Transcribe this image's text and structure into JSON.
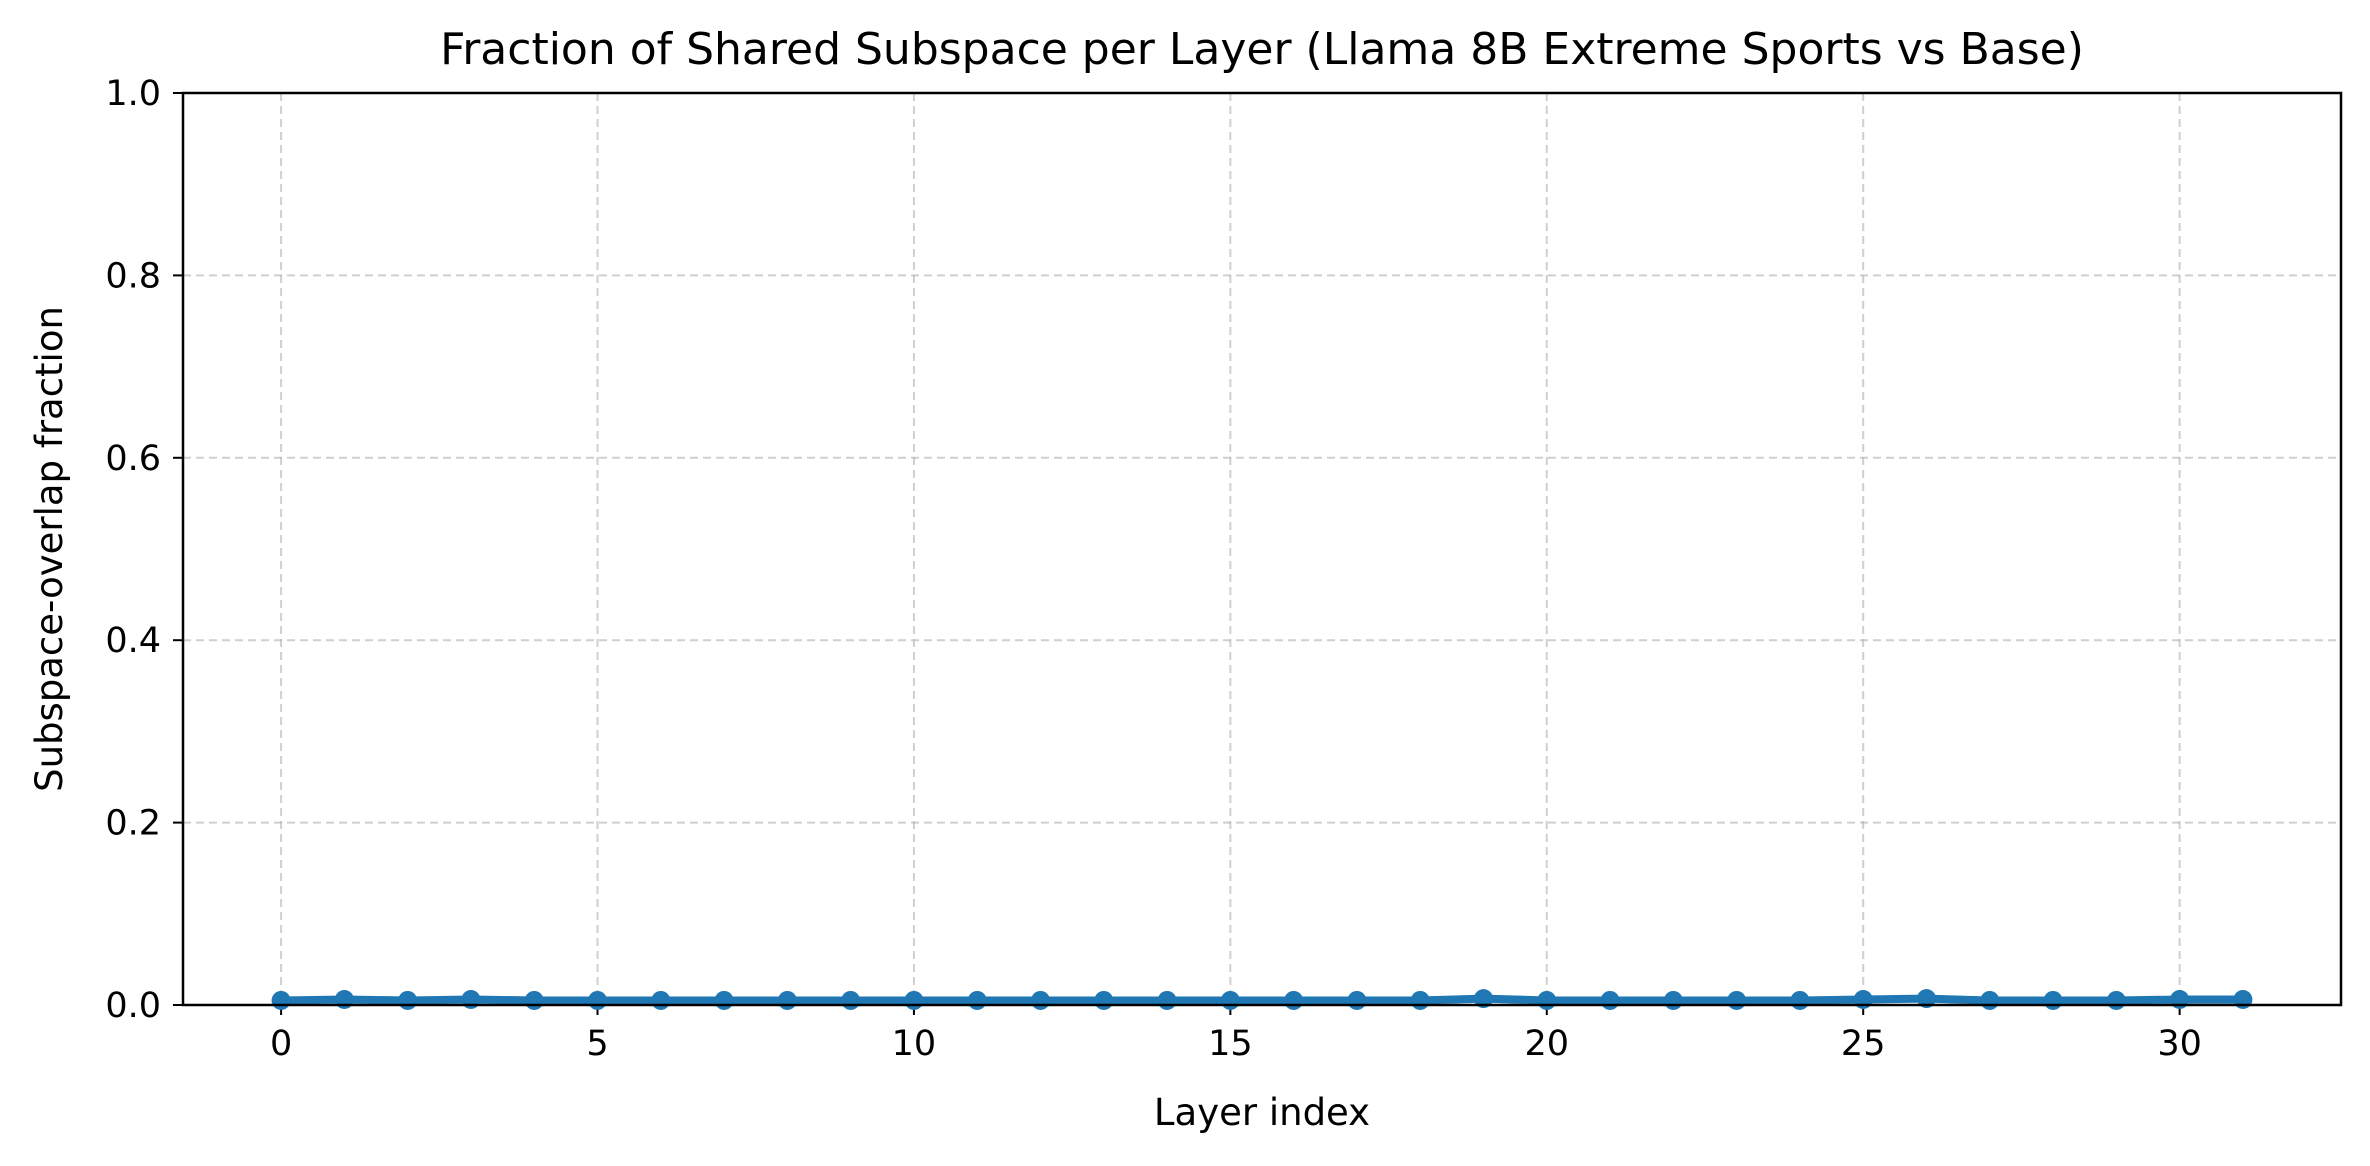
{
  "chart_data": {
    "type": "line",
    "title": "Fraction of Shared Subspace per Layer (Llama 8B Extreme Sports vs Base)",
    "xlabel": "Layer index",
    "ylabel": "Subspace-overlap fraction",
    "xlim": [
      -1.55,
      32.55
    ],
    "ylim": [
      0,
      1.0
    ],
    "xticks": [
      0,
      5,
      10,
      15,
      20,
      25,
      30
    ],
    "xtick_labels": [
      "0",
      "5",
      "10",
      "15",
      "20",
      "25",
      "30"
    ],
    "yticks": [
      0.0,
      0.2,
      0.4,
      0.6,
      0.8,
      1.0
    ],
    "ytick_labels": [
      "0.0",
      "0.2",
      "0.4",
      "0.6",
      "0.8",
      "1.0"
    ],
    "grid": true,
    "marker": "circle",
    "color": "#1f77b4",
    "series": [
      {
        "x": [
          0,
          1,
          2,
          3,
          4,
          5,
          6,
          7,
          8,
          9,
          10,
          11,
          12,
          13,
          14,
          15,
          16,
          17,
          18,
          19,
          20,
          21,
          22,
          23,
          24,
          25,
          26,
          27,
          28,
          29,
          30,
          31
        ],
        "values": [
          0.005,
          0.006,
          0.005,
          0.006,
          0.005,
          0.005,
          0.005,
          0.005,
          0.005,
          0.005,
          0.005,
          0.005,
          0.005,
          0.005,
          0.005,
          0.005,
          0.005,
          0.005,
          0.005,
          0.007,
          0.005,
          0.005,
          0.005,
          0.005,
          0.005,
          0.006,
          0.007,
          0.005,
          0.005,
          0.005,
          0.006,
          0.006
        ]
      }
    ]
  }
}
